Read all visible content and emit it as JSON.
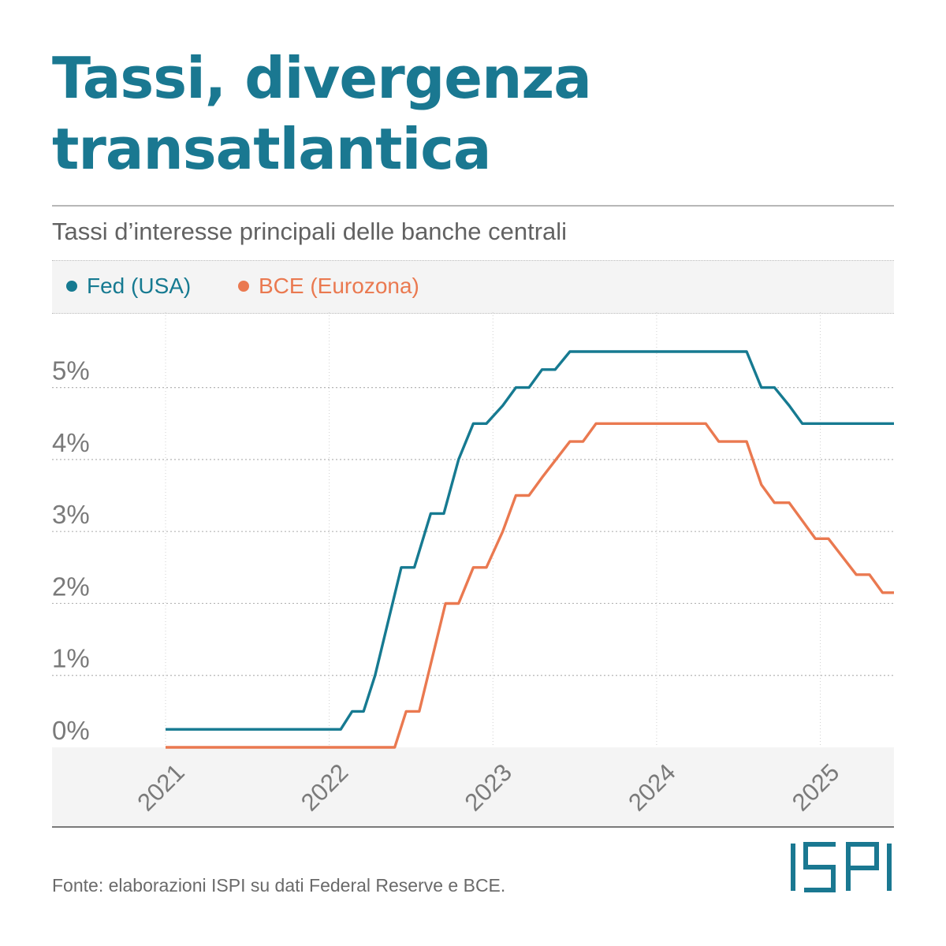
{
  "title_line1": "Tassi, divergenza",
  "title_line2": "transatlantica",
  "subtitle": "Tassi d’interesse principali delle banche centrali",
  "source": "Fonte: elaborazioni ISPI su dati Federal Reserve e BCE.",
  "logo_text": "ISPI",
  "colors": {
    "title": "#1a7891",
    "fed": "#167a91",
    "bce": "#ea7950",
    "logo": "#1a7891"
  },
  "chart_data": {
    "type": "line",
    "title": "",
    "xlabel": "",
    "ylabel": "",
    "xlim": [
      2021.0,
      2025.45
    ],
    "ylim": [
      0,
      5.5
    ],
    "grid": true,
    "legend_position": "top-left",
    "x_ticks": [
      2021,
      2022,
      2023,
      2024,
      2025
    ],
    "x_tick_labels": [
      "2021",
      "2022",
      "2023",
      "2024",
      "2025"
    ],
    "y_ticks": [
      0,
      1,
      2,
      3,
      4,
      5
    ],
    "y_tick_labels": [
      "0%",
      "1%",
      "2%",
      "3%",
      "4%",
      "5%"
    ],
    "series": [
      {
        "name": "Fed (USA)",
        "color": "#167a91",
        "points": [
          [
            2021.0,
            0.25
          ],
          [
            2022.07,
            0.25
          ],
          [
            2022.14,
            0.5
          ],
          [
            2022.21,
            0.5
          ],
          [
            2022.28,
            1.0
          ],
          [
            2022.44,
            2.5
          ],
          [
            2022.52,
            2.5
          ],
          [
            2022.62,
            3.25
          ],
          [
            2022.7,
            3.25
          ],
          [
            2022.79,
            4.0
          ],
          [
            2022.88,
            4.5
          ],
          [
            2022.96,
            4.5
          ],
          [
            2023.06,
            4.75
          ],
          [
            2023.14,
            5.0
          ],
          [
            2023.22,
            5.0
          ],
          [
            2023.3,
            5.25
          ],
          [
            2023.38,
            5.25
          ],
          [
            2023.47,
            5.5
          ],
          [
            2024.55,
            5.5
          ],
          [
            2024.64,
            5.0
          ],
          [
            2024.72,
            5.0
          ],
          [
            2024.81,
            4.75
          ],
          [
            2024.89,
            4.5
          ],
          [
            2025.45,
            4.5
          ]
        ]
      },
      {
        "name": "BCE (Eurozona)",
        "color": "#ea7950",
        "points": [
          [
            2021.0,
            0.0
          ],
          [
            2022.4,
            0.0
          ],
          [
            2022.47,
            0.5
          ],
          [
            2022.55,
            0.5
          ],
          [
            2022.71,
            2.0
          ],
          [
            2022.79,
            2.0
          ],
          [
            2022.88,
            2.5
          ],
          [
            2022.96,
            2.5
          ],
          [
            2023.06,
            3.0
          ],
          [
            2023.14,
            3.5
          ],
          [
            2023.22,
            3.5
          ],
          [
            2023.3,
            3.75
          ],
          [
            2023.47,
            4.25
          ],
          [
            2023.55,
            4.25
          ],
          [
            2023.63,
            4.5
          ],
          [
            2024.3,
            4.5
          ],
          [
            2024.38,
            4.25
          ],
          [
            2024.55,
            4.25
          ],
          [
            2024.64,
            3.65
          ],
          [
            2024.72,
            3.4
          ],
          [
            2024.81,
            3.4
          ],
          [
            2024.97,
            2.9
          ],
          [
            2025.05,
            2.9
          ],
          [
            2025.22,
            2.4
          ],
          [
            2025.3,
            2.4
          ],
          [
            2025.38,
            2.15
          ],
          [
            2025.45,
            2.15
          ]
        ]
      }
    ]
  }
}
